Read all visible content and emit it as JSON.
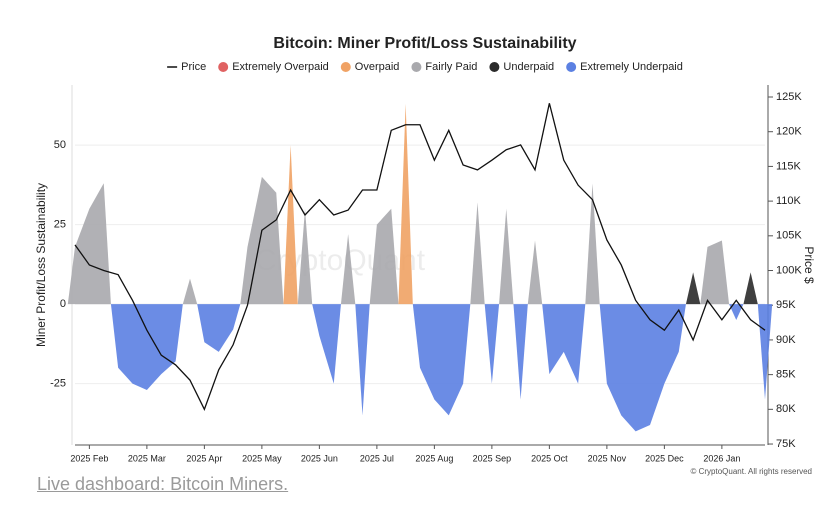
{
  "chart_data": {
    "type": "area",
    "title": "Bitcoin: Miner Profit/Loss Sustainability",
    "ylabel": "Miner Profit/Loss Sustainability",
    "y2label": "Price $",
    "watermark": "CryptoQuant",
    "copyright": "© CryptoQuant. All rights reserved",
    "categories": [
      null,
      "2025 Feb",
      null,
      null,
      null,
      "2025 Mar",
      null,
      null,
      null,
      "2025 Apr",
      null,
      null,
      null,
      "2025 May",
      null,
      null,
      null,
      "2025 Jun",
      null,
      null,
      null,
      "2025 Jul",
      null,
      null,
      null,
      "2025 Aug",
      null,
      null,
      null,
      "2025 Sep",
      null,
      null,
      null,
      "2025 Oct",
      null,
      null,
      null,
      "2025 Nov",
      null,
      null,
      null,
      "2025 Dec",
      null,
      null,
      null,
      "2026 Jan",
      null,
      null,
      null
    ],
    "ylim": [
      -44.3,
      68.9
    ],
    "yticks": [
      -25,
      0,
      25,
      50
    ],
    "y2lim": [
      74860,
      126730
    ],
    "y2ticks": [
      {
        "value": 75000,
        "label": "75K"
      },
      {
        "value": 80000,
        "label": "80K"
      },
      {
        "value": 85000,
        "label": "85K"
      },
      {
        "value": 90000,
        "label": "90K"
      },
      {
        "value": 95000,
        "label": "95K"
      },
      {
        "value": 100000,
        "label": "100K"
      },
      {
        "value": 105000,
        "label": "105K"
      },
      {
        "value": 110000,
        "label": "110K"
      },
      {
        "value": 115000,
        "label": "115K"
      },
      {
        "value": 120000,
        "label": "120K"
      },
      {
        "value": 125000,
        "label": "125K"
      }
    ],
    "grid": true,
    "series": [
      {
        "name": "Price",
        "kind": "line",
        "axis": "y2",
        "color": "#111111",
        "values": [
          103700,
          100800,
          100000,
          99400,
          95700,
          91400,
          87800,
          86400,
          84200,
          80000,
          85700,
          89300,
          95000,
          105800,
          107300,
          111600,
          108000,
          110200,
          108000,
          108700,
          111600,
          111600,
          120200,
          121000,
          121000,
          115900,
          120200,
          115200,
          114500,
          115900,
          117400,
          118100,
          114500,
          124100,
          115900,
          112300,
          110200,
          104400,
          100800,
          95700,
          92900,
          91400,
          94300,
          90000,
          95700,
          92900,
          95700,
          92900,
          91400
        ]
      },
      {
        "name": "Extremely Overpaid",
        "color": "#e06262",
        "values": [
          null,
          null,
          null,
          null,
          null,
          null,
          null,
          null,
          null,
          null,
          null,
          null,
          null,
          null,
          null,
          null,
          null,
          null,
          null,
          null,
          null,
          null,
          null,
          null,
          null,
          null,
          null,
          null,
          null,
          null,
          null,
          null,
          null,
          null,
          null,
          null,
          null,
          null,
          null,
          null,
          null,
          null,
          null,
          null,
          null,
          null,
          null,
          null,
          null
        ]
      },
      {
        "name": "Overpaid",
        "color": "#f0a264",
        "values": [
          null,
          null,
          null,
          null,
          null,
          null,
          null,
          null,
          null,
          null,
          null,
          null,
          null,
          null,
          null,
          50,
          null,
          null,
          null,
          null,
          null,
          null,
          null,
          63,
          null,
          null,
          null,
          null,
          null,
          null,
          null,
          null,
          null,
          null,
          null,
          null,
          null,
          null,
          null,
          null,
          null,
          null,
          null,
          null,
          null,
          null,
          null,
          null,
          null
        ]
      },
      {
        "name": "Fairly Paid",
        "color": "#a9a9ad",
        "values": [
          18,
          30,
          38,
          null,
          null,
          null,
          null,
          null,
          8,
          null,
          null,
          null,
          18,
          40,
          35,
          null,
          30,
          null,
          null,
          22,
          null,
          25,
          30,
          null,
          null,
          null,
          null,
          null,
          32,
          null,
          30,
          null,
          20,
          null,
          null,
          null,
          38,
          null,
          null,
          null,
          null,
          null,
          null,
          null,
          18,
          20,
          null,
          null,
          null
        ]
      },
      {
        "name": "Underpaid",
        "color": "#2a2a2a",
        "values": [
          null,
          null,
          null,
          null,
          null,
          null,
          null,
          null,
          null,
          null,
          null,
          null,
          null,
          null,
          null,
          null,
          null,
          null,
          null,
          null,
          null,
          null,
          null,
          null,
          null,
          null,
          null,
          null,
          null,
          null,
          null,
          null,
          null,
          null,
          null,
          null,
          null,
          null,
          null,
          null,
          null,
          null,
          null,
          10,
          null,
          null,
          null,
          10,
          null
        ]
      },
      {
        "name": "Extremely Underpaid",
        "color": "#5b80e2",
        "values": [
          null,
          null,
          null,
          -20,
          -25,
          -27,
          -22,
          -18,
          null,
          -12,
          -15,
          -8,
          null,
          null,
          null,
          null,
          null,
          -10,
          -25,
          null,
          -35,
          null,
          null,
          null,
          -20,
          -30,
          -35,
          -25,
          null,
          -25,
          null,
          -30,
          null,
          -22,
          -15,
          -25,
          null,
          -25,
          -35,
          -40,
          -38,
          -25,
          -15,
          null,
          null,
          null,
          -5,
          null,
          -30
        ]
      }
    ]
  },
  "footer": {
    "link": "Live dashboard: Bitcoin Miners."
  }
}
